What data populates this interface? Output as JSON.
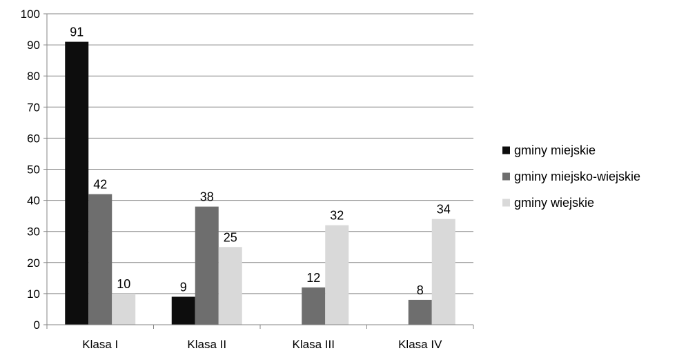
{
  "chart_data": {
    "type": "bar",
    "categories": [
      "Klasa I",
      "Klasa II",
      "Klasa III",
      "Klasa IV"
    ],
    "series": [
      {
        "name": "gminy miejskie",
        "color": "#0d0d0d",
        "values": [
          91,
          9,
          null,
          null
        ]
      },
      {
        "name": "gminy miejsko-wiejskie",
        "color": "#6e6e6e",
        "values": [
          42,
          38,
          12,
          8
        ]
      },
      {
        "name": "gminy wiejskie",
        "color": "#d9d9d9",
        "values": [
          10,
          25,
          32,
          34
        ]
      }
    ],
    "ylim": [
      0,
      100
    ],
    "yticks": [
      0,
      10,
      20,
      30,
      40,
      50,
      60,
      70,
      80,
      90,
      100
    ],
    "title": "",
    "xlabel": "",
    "ylabel": "",
    "grid": true,
    "legend": "right"
  }
}
